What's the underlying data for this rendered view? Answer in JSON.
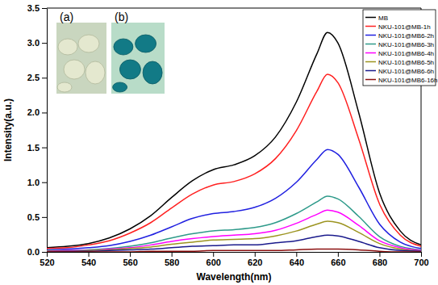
{
  "chart_data": {
    "type": "line",
    "x_label": "Wavelength(nm)",
    "y_label": "Intensity(a.u.)",
    "annotations": [
      "(a)",
      "(b)"
    ],
    "x": [
      520,
      530,
      540,
      550,
      560,
      570,
      580,
      590,
      600,
      610,
      620,
      630,
      640,
      650,
      655,
      660,
      670,
      680,
      690,
      700
    ],
    "xlim": [
      520,
      700
    ],
    "xticks": [
      520,
      540,
      560,
      580,
      600,
      620,
      640,
      660,
      680,
      700
    ],
    "ylim": [
      0,
      3.5
    ],
    "yticks": [
      {
        "value": 0,
        "label": "0.0"
      },
      {
        "value": 0.5,
        "label": "0.5"
      },
      {
        "value": 1,
        "label": "1.0"
      },
      {
        "value": 1.5,
        "label": "1.5"
      },
      {
        "value": 2,
        "label": "2.0"
      },
      {
        "value": 2.5,
        "label": "2.5"
      },
      {
        "value": 3,
        "label": "3.0"
      },
      {
        "value": 3.5,
        "label": "3.5"
      }
    ],
    "grid": false,
    "legend": "upper right",
    "series": [
      {
        "name": "MB",
        "color": "#000000",
        "values": [
          0.06,
          0.08,
          0.12,
          0.2,
          0.33,
          0.52,
          0.78,
          1.02,
          1.18,
          1.25,
          1.38,
          1.65,
          2.15,
          2.85,
          3.15,
          3.0,
          2.0,
          0.85,
          0.3,
          0.1
        ]
      },
      {
        "name": "NKU-101@MB-1h",
        "color": "#ff2020",
        "values": [
          0.05,
          0.06,
          0.1,
          0.16,
          0.27,
          0.42,
          0.63,
          0.83,
          0.96,
          1.01,
          1.12,
          1.34,
          1.74,
          2.31,
          2.55,
          2.43,
          1.62,
          0.69,
          0.24,
          0.08
        ]
      },
      {
        "name": "NKU-101@MB6-2h",
        "color": "#2020e0",
        "values": [
          0.03,
          0.04,
          0.06,
          0.09,
          0.15,
          0.24,
          0.36,
          0.48,
          0.55,
          0.58,
          0.64,
          0.77,
          1.0,
          1.33,
          1.47,
          1.4,
          0.93,
          0.4,
          0.14,
          0.05
        ]
      },
      {
        "name": "NKU-101@MB6-3h",
        "color": "#2e9a8a",
        "values": [
          0.02,
          0.02,
          0.03,
          0.05,
          0.08,
          0.13,
          0.2,
          0.26,
          0.3,
          0.32,
          0.35,
          0.42,
          0.55,
          0.72,
          0.8,
          0.76,
          0.51,
          0.22,
          0.08,
          0.03
        ]
      },
      {
        "name": "NKU-101@MB6-4h",
        "color": "#ff00ff",
        "values": [
          0.01,
          0.02,
          0.02,
          0.04,
          0.06,
          0.1,
          0.15,
          0.19,
          0.22,
          0.24,
          0.26,
          0.31,
          0.41,
          0.54,
          0.6,
          0.57,
          0.38,
          0.16,
          0.06,
          0.02
        ]
      },
      {
        "name": "NKU-101@MB6-5h",
        "color": "#9c9420",
        "values": [
          0.01,
          0.01,
          0.02,
          0.03,
          0.05,
          0.07,
          0.11,
          0.14,
          0.17,
          0.18,
          0.19,
          0.23,
          0.3,
          0.4,
          0.44,
          0.42,
          0.28,
          0.12,
          0.04,
          0.01
        ]
      },
      {
        "name": "NKU-101@MB6-6h",
        "color": "#1a1a8c",
        "values": [
          0.0,
          0.01,
          0.01,
          0.02,
          0.03,
          0.04,
          0.06,
          0.08,
          0.09,
          0.1,
          0.1,
          0.13,
          0.16,
          0.22,
          0.24,
          0.23,
          0.15,
          0.06,
          0.02,
          0.01
        ]
      },
      {
        "name": "NKU-101@MB6-16h",
        "color": "#8c1010",
        "values": [
          0,
          0,
          0,
          0,
          0,
          0.01,
          0.01,
          0.01,
          0.02,
          0.02,
          0.02,
          0.02,
          0.03,
          0.04,
          0.04,
          0.04,
          0.03,
          0.01,
          0,
          0
        ]
      }
    ]
  }
}
